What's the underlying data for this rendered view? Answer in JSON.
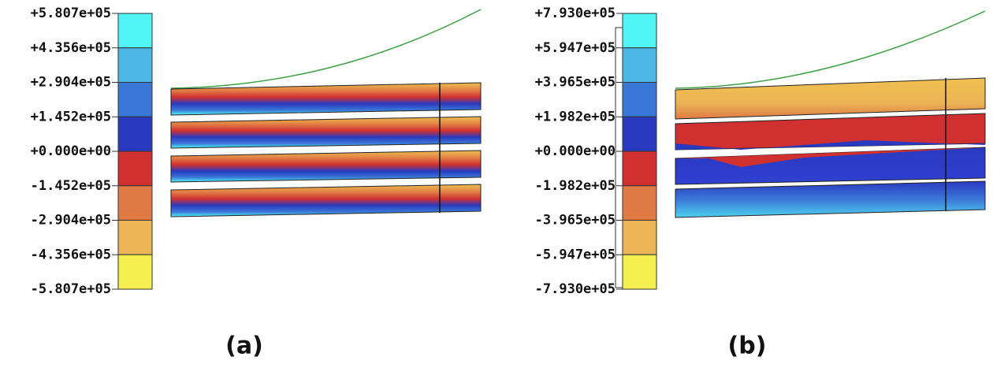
{
  "panels": [
    {
      "legend_labels": [
        "+5.807e+05",
        "+4.356e+05",
        "+2.904e+05",
        "+1.452e+05",
        "+0.000e+00",
        "-1.452e+05",
        "-2.904e+05",
        "-4.356e+05",
        "-5.807e+05"
      ],
      "caption": "(a)"
    },
    {
      "legend_labels": [
        "+7.930e+05",
        "+5.947e+05",
        "+3.965e+05",
        "+1.982e+05",
        "+0.000e+00",
        "-1.982e+05",
        "-3.965e+05",
        "-5.947e+05",
        "-7.930e+05"
      ],
      "caption": "(b)"
    }
  ]
}
